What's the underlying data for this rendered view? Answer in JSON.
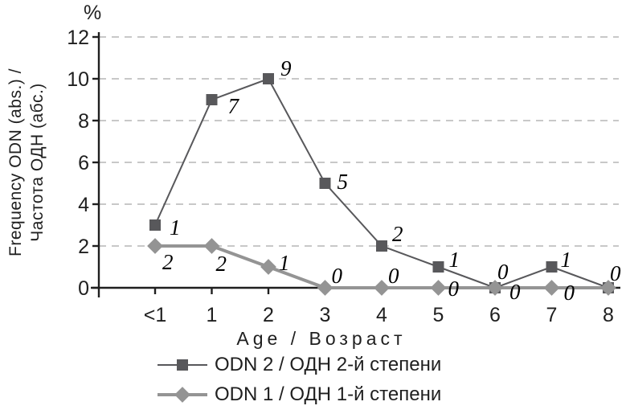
{
  "chart_data": {
    "type": "line",
    "title": "",
    "y_unit": "%",
    "xlabel": "Age / Возраст",
    "ylabel_line1": "Frequency ODN (abs.) /",
    "ylabel_line2": "Частота ОДН (абс.)",
    "categories": [
      "<1",
      "1",
      "2",
      "3",
      "4",
      "5",
      "6",
      "7",
      "8"
    ],
    "yticks": [
      0,
      2,
      4,
      6,
      8,
      10,
      12
    ],
    "ylim": [
      0,
      12
    ],
    "grid": "horizontal-dashed",
    "legend_position": "bottom",
    "series": [
      {
        "name": "ODN 2 / ОДН 2-й степени",
        "marker": "square",
        "color": "#58585b",
        "line_width": 2,
        "values": [
          3,
          9,
          10,
          5,
          2,
          1,
          0,
          1,
          0
        ],
        "point_labels": [
          "1",
          "7",
          "9",
          "5",
          "2",
          "1",
          "0",
          "1",
          "0"
        ]
      },
      {
        "name": "ODN 1 / ОДН 1-й степени",
        "marker": "diamond",
        "color": "#949494",
        "line_width": 4,
        "values": [
          2,
          2,
          1,
          0,
          0,
          0,
          0,
          0,
          0
        ],
        "point_labels": [
          "2",
          "2",
          "1",
          "0",
          "0",
          "0",
          "0",
          "0",
          ""
        ]
      }
    ],
    "colors": {
      "axis": "#1f1f1f",
      "gridline": "#c8c8c8",
      "point_label": "#000000"
    }
  }
}
